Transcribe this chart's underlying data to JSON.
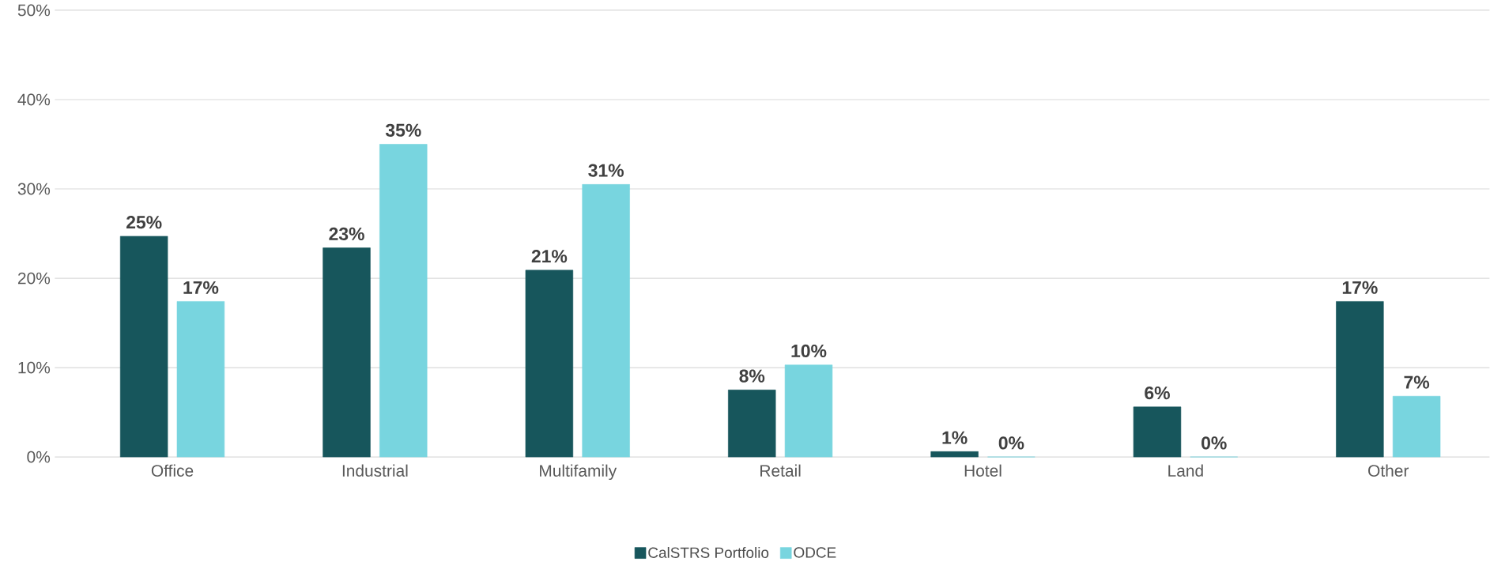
{
  "chart_data": {
    "type": "bar",
    "categories": [
      "Office",
      "Industrial",
      "Multifamily",
      "Retail",
      "Hotel",
      "Land",
      "Other"
    ],
    "series": [
      {
        "name": "CalSTRS Portfolio",
        "color": "#17565c",
        "values": [
          24.7,
          23.4,
          20.9,
          7.5,
          0.6,
          5.6,
          17.4
        ],
        "value_labels": [
          "25%",
          "23%",
          "21%",
          "8%",
          "1%",
          "6%",
          "17%"
        ]
      },
      {
        "name": "ODCE",
        "color": "#78d5df",
        "values": [
          17.4,
          35.0,
          30.5,
          10.3,
          0,
          0,
          6.8
        ],
        "value_labels": [
          "17%",
          "35%",
          "31%",
          "10%",
          "0%",
          "0%",
          "7%"
        ]
      }
    ],
    "ylim": [
      0,
      50
    ],
    "yticks": [
      {
        "value": 0,
        "label": "0%"
      },
      {
        "value": 10,
        "label": "10%"
      },
      {
        "value": 20,
        "label": "20%"
      },
      {
        "value": 30,
        "label": "30%"
      },
      {
        "value": 40,
        "label": "40%"
      },
      {
        "value": 50,
        "label": "50%"
      }
    ],
    "grid": "y",
    "legend": "bottom"
  }
}
